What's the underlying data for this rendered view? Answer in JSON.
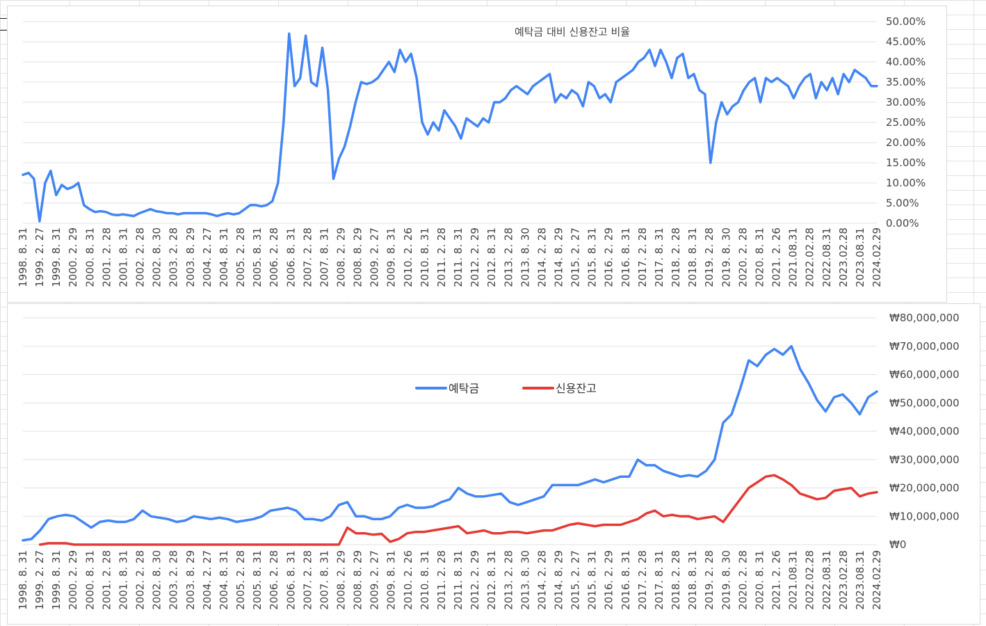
{
  "chart_data": [
    {
      "type": "line",
      "title": "예탁금 대비 신용잔고 비율",
      "xlabel": "",
      "ylabel": "",
      "ylim": [
        0,
        0.5
      ],
      "y_ticks": [
        "0.00%",
        "5.00%",
        "10.00%",
        "15.00%",
        "20.00%",
        "25.00%",
        "30.00%",
        "35.00%",
        "40.00%",
        "45.00%",
        "50.00%"
      ],
      "x_ticks": [
        "1998. 8. 31",
        "1999. 2. 27",
        "1999. 8. 31",
        "2000. 2. 29",
        "2000. 8. 31",
        "2001. 2. 28",
        "2001. 8. 31",
        "2002. 2. 28",
        "2002. 8. 30",
        "2003. 2. 28",
        "2003. 8. 29",
        "2004. 2. 27",
        "2004. 8. 31",
        "2005. 2. 28",
        "2005. 8. 31",
        "2006. 2. 28",
        "2006. 8. 31",
        "2007. 2. 28",
        "2007. 8. 31",
        "2008. 2. 29",
        "2008. 8. 29",
        "2009. 2. 27",
        "2009. 8. 31",
        "2010. 2. 26",
        "2010. 8. 31",
        "2011. 2. 28",
        "2011. 8. 31",
        "2012. 2. 29",
        "2012. 8. 31",
        "2013. 2. 28",
        "2013. 8. 30",
        "2014. 2. 28",
        "2014. 8. 29",
        "2015. 2. 27",
        "2015. 8. 31",
        "2016. 2. 29",
        "2016. 8. 31",
        "2017. 2. 28",
        "2017. 8. 31",
        "2018. 2. 28",
        "2018. 8. 31",
        "2019. 2. 28",
        "2019. 8. 30",
        "2020. 2. 28",
        "2020. 8. 31",
        "2021. 2. 26",
        "2021.08.31",
        "2022.02.28",
        "2022.08.31",
        "2023.02.28",
        "2023.08.31",
        "2024.02.29"
      ],
      "series": [
        {
          "color": "#4285f4",
          "values": [
            0.12,
            0.125,
            0.11,
            0.005,
            0.1,
            0.13,
            0.07,
            0.095,
            0.085,
            0.09,
            0.1,
            0.045,
            0.035,
            0.028,
            0.03,
            0.028,
            0.022,
            0.02,
            0.022,
            0.02,
            0.018,
            0.025,
            0.03,
            0.035,
            0.03,
            0.028,
            0.025,
            0.025,
            0.022,
            0.025,
            0.025,
            0.025,
            0.025,
            0.025,
            0.022,
            0.018,
            0.022,
            0.025,
            0.022,
            0.025,
            0.035,
            0.045,
            0.045,
            0.042,
            0.045,
            0.055,
            0.1,
            0.25,
            0.47,
            0.34,
            0.36,
            0.465,
            0.35,
            0.34,
            0.435,
            0.33,
            0.11,
            0.16,
            0.19,
            0.24,
            0.3,
            0.35,
            0.345,
            0.35,
            0.36,
            0.38,
            0.4,
            0.375,
            0.43,
            0.4,
            0.42,
            0.36,
            0.25,
            0.22,
            0.25,
            0.23,
            0.28,
            0.26,
            0.24,
            0.21,
            0.26,
            0.25,
            0.24,
            0.26,
            0.25,
            0.3,
            0.3,
            0.31,
            0.33,
            0.34,
            0.33,
            0.32,
            0.34,
            0.35,
            0.36,
            0.37,
            0.3,
            0.32,
            0.31,
            0.33,
            0.32,
            0.29,
            0.35,
            0.34,
            0.31,
            0.32,
            0.3,
            0.35,
            0.36,
            0.37,
            0.38,
            0.4,
            0.41,
            0.43,
            0.39,
            0.43,
            0.4,
            0.36,
            0.41,
            0.42,
            0.36,
            0.37,
            0.33,
            0.32,
            0.15,
            0.25,
            0.3,
            0.27,
            0.29,
            0.3,
            0.33,
            0.35,
            0.36,
            0.3,
            0.36,
            0.35,
            0.36,
            0.35,
            0.34,
            0.31,
            0.34,
            0.36,
            0.37,
            0.31,
            0.35,
            0.33,
            0.36,
            0.32,
            0.37,
            0.35,
            0.38,
            0.37,
            0.36,
            0.34,
            0.34
          ]
        }
      ]
    },
    {
      "type": "line",
      "title": "",
      "xlabel": "",
      "ylabel": "",
      "ylim": [
        0,
        80000000
      ],
      "legend_position": "top-center",
      "y_ticks": [
        "₩0",
        "₩10,000,000",
        "₩20,000,000",
        "₩30,000,000",
        "₩40,000,000",
        "₩50,000,000",
        "₩60,000,000",
        "₩70,000,000",
        "₩80,000,000"
      ],
      "x_ticks": [
        "1998. 8. 31",
        "1999. 2. 27",
        "1999. 8. 31",
        "2000. 2. 29",
        "2000. 8. 31",
        "2001. 2. 28",
        "2001. 8. 31",
        "2002. 2. 28",
        "2002. 8. 30",
        "2003. 2. 28",
        "2003. 8. 29",
        "2004. 2. 27",
        "2004. 8. 31",
        "2005. 2. 28",
        "2005. 8. 31",
        "2006. 2. 28",
        "2006. 8. 31",
        "2007. 2. 28",
        "2007. 8. 31",
        "2008. 2. 29",
        "2008. 8. 29",
        "2009. 2. 27",
        "2009. 8. 31",
        "2010. 2. 26",
        "2010. 8. 31",
        "2011. 2. 28",
        "2011. 8. 31",
        "2012. 2. 29",
        "2012. 8. 31",
        "2013. 2. 28",
        "2013. 8. 30",
        "2014. 2. 28",
        "2014. 8. 29",
        "2015. 2. 27",
        "2015. 8. 31",
        "2016. 2. 29",
        "2016. 8. 31",
        "2017. 2. 28",
        "2017. 8. 31",
        "2018. 2. 28",
        "2018. 8. 31",
        "2019. 2. 28",
        "2019. 8. 30",
        "2020. 2. 28",
        "2020. 8. 31",
        "2021. 2. 26",
        "2021.08.31",
        "2022.02.28",
        "2022.08.31",
        "2023.02.28",
        "2023.08.31",
        "2024.02.29"
      ],
      "series": [
        {
          "name": "예탁금",
          "color": "#4285f4",
          "values": [
            1500000,
            2000000,
            5000000,
            9000000,
            10000000,
            10500000,
            10000000,
            8000000,
            6000000,
            8000000,
            8500000,
            8000000,
            8000000,
            9000000,
            12000000,
            10000000,
            9500000,
            9000000,
            8000000,
            8500000,
            10000000,
            9500000,
            9000000,
            9500000,
            9000000,
            8000000,
            8500000,
            9000000,
            10000000,
            12000000,
            12500000,
            13000000,
            12000000,
            9000000,
            9000000,
            8500000,
            10000000,
            14000000,
            15000000,
            10000000,
            10000000,
            9000000,
            9000000,
            10000000,
            13000000,
            14000000,
            13000000,
            13000000,
            13500000,
            15000000,
            16000000,
            20000000,
            18000000,
            17000000,
            17000000,
            17500000,
            18000000,
            15000000,
            14000000,
            15000000,
            16000000,
            17000000,
            21000000,
            21000000,
            21000000,
            21000000,
            22000000,
            23000000,
            22000000,
            23000000,
            24000000,
            24000000,
            30000000,
            28000000,
            28000000,
            26000000,
            25000000,
            24000000,
            24500000,
            24000000,
            26000000,
            30000000,
            43000000,
            46000000,
            55000000,
            65000000,
            63000000,
            67000000,
            69000000,
            67000000,
            70000000,
            62000000,
            57000000,
            51000000,
            47000000,
            52000000,
            53000000,
            50000000,
            46000000,
            52000000,
            54000000
          ]
        },
        {
          "name": "신용잔고",
          "color": "#e53935",
          "values": [
            null,
            null,
            0,
            500000,
            500000,
            500000,
            0,
            0,
            0,
            0,
            0,
            0,
            0,
            0,
            0,
            0,
            0,
            0,
            0,
            0,
            0,
            0,
            0,
            0,
            0,
            0,
            0,
            0,
            0,
            0,
            0,
            0,
            0,
            0,
            0,
            0,
            0,
            0,
            6000000,
            4000000,
            4000000,
            3500000,
            3800000,
            1000000,
            2000000,
            4000000,
            4500000,
            4500000,
            5000000,
            5500000,
            6000000,
            6500000,
            4000000,
            4500000,
            5000000,
            4000000,
            4000000,
            4500000,
            4500000,
            4000000,
            4500000,
            5000000,
            5000000,
            6000000,
            7000000,
            7500000,
            7000000,
            6500000,
            7000000,
            7000000,
            7000000,
            8000000,
            9000000,
            11000000,
            12000000,
            10000000,
            10500000,
            10000000,
            10000000,
            9000000,
            9500000,
            10000000,
            8000000,
            12000000,
            16000000,
            20000000,
            22000000,
            24000000,
            24500000,
            23000000,
            21000000,
            18000000,
            17000000,
            16000000,
            16500000,
            19000000,
            19500000,
            20000000,
            17000000,
            18000000,
            18500000
          ]
        }
      ]
    }
  ]
}
